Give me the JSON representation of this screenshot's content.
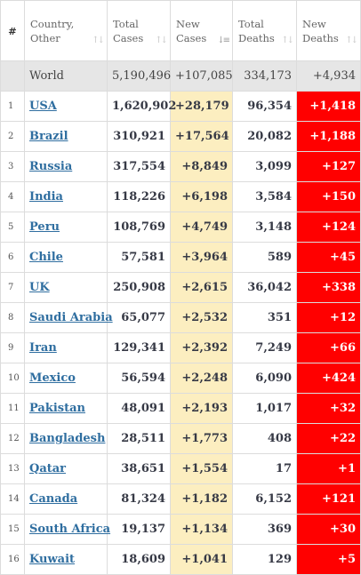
{
  "headers": {
    "idx": "#",
    "country": [
      "Country,",
      "Other"
    ],
    "total_cases": [
      "Total",
      "Cases"
    ],
    "new_cases": [
      "New",
      "Cases"
    ],
    "total_deaths": [
      "Total",
      "Deaths"
    ],
    "new_deaths": [
      "New",
      "Deaths"
    ]
  },
  "world": {
    "country": "World",
    "total_cases": "5,190,496",
    "new_cases": "+107,085",
    "total_deaths": "334,173",
    "new_deaths": "+4,934"
  },
  "rows": [
    {
      "idx": "1",
      "country": "USA",
      "total_cases": "1,620,902",
      "new_cases": "+28,179",
      "total_deaths": "96,354",
      "new_deaths": "+1,418"
    },
    {
      "idx": "2",
      "country": "Brazil",
      "total_cases": "310,921",
      "new_cases": "+17,564",
      "total_deaths": "20,082",
      "new_deaths": "+1,188"
    },
    {
      "idx": "3",
      "country": "Russia",
      "total_cases": "317,554",
      "new_cases": "+8,849",
      "total_deaths": "3,099",
      "new_deaths": "+127"
    },
    {
      "idx": "4",
      "country": "India",
      "total_cases": "118,226",
      "new_cases": "+6,198",
      "total_deaths": "3,584",
      "new_deaths": "+150"
    },
    {
      "idx": "5",
      "country": "Peru",
      "total_cases": "108,769",
      "new_cases": "+4,749",
      "total_deaths": "3,148",
      "new_deaths": "+124"
    },
    {
      "idx": "6",
      "country": "Chile",
      "total_cases": "57,581",
      "new_cases": "+3,964",
      "total_deaths": "589",
      "new_deaths": "+45"
    },
    {
      "idx": "7",
      "country": "UK",
      "total_cases": "250,908",
      "new_cases": "+2,615",
      "total_deaths": "36,042",
      "new_deaths": "+338"
    },
    {
      "idx": "8",
      "country": "Saudi Arabia",
      "total_cases": "65,077",
      "new_cases": "+2,532",
      "total_deaths": "351",
      "new_deaths": "+12"
    },
    {
      "idx": "9",
      "country": "Iran",
      "total_cases": "129,341",
      "new_cases": "+2,392",
      "total_deaths": "7,249",
      "new_deaths": "+66"
    },
    {
      "idx": "10",
      "country": "Mexico",
      "total_cases": "56,594",
      "new_cases": "+2,248",
      "total_deaths": "6,090",
      "new_deaths": "+424"
    },
    {
      "idx": "11",
      "country": "Pakistan",
      "total_cases": "48,091",
      "new_cases": "+2,193",
      "total_deaths": "1,017",
      "new_deaths": "+32"
    },
    {
      "idx": "12",
      "country": "Bangladesh",
      "total_cases": "28,511",
      "new_cases": "+1,773",
      "total_deaths": "408",
      "new_deaths": "+22"
    },
    {
      "idx": "13",
      "country": "Qatar",
      "total_cases": "38,651",
      "new_cases": "+1,554",
      "total_deaths": "17",
      "new_deaths": "+1"
    },
    {
      "idx": "14",
      "country": "Canada",
      "total_cases": "81,324",
      "new_cases": "+1,182",
      "total_deaths": "6,152",
      "new_deaths": "+121"
    },
    {
      "idx": "15",
      "country": "South Africa",
      "total_cases": "19,137",
      "new_cases": "+1,134",
      "total_deaths": "369",
      "new_deaths": "+30"
    },
    {
      "idx": "16",
      "country": "Kuwait",
      "total_cases": "18,609",
      "new_cases": "+1,041",
      "total_deaths": "129",
      "new_deaths": "+5"
    }
  ],
  "icons": {
    "sort": "sort-arrows-icon",
    "sort_active": "sort-desc-icon"
  },
  "colors": {
    "new_cases_bg": "#fceec0",
    "new_deaths_bg": "#ff0000",
    "world_bg": "#e6e6e6",
    "link": "#2f6ea0"
  }
}
